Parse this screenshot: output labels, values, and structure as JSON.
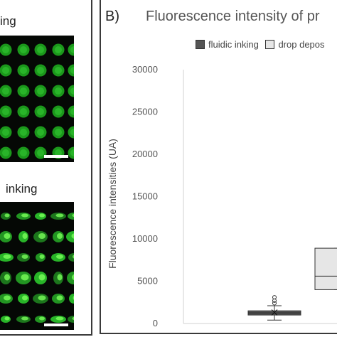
{
  "panel_a": {
    "top_label": "ing",
    "bottom_label": "inking"
  },
  "panel_b": {
    "label": "B)"
  },
  "chart_data": {
    "type": "box",
    "title": "Fluorescence intensity of pr",
    "ylabel": "Fluorescence intensities (UA)",
    "ylim": [
      0,
      30000
    ],
    "yticks": [
      0,
      5000,
      10000,
      15000,
      20000,
      25000,
      30000
    ],
    "grid": false,
    "legend_position": "top",
    "series": [
      {
        "name": "fluidic inking",
        "color": "#555555",
        "min": 400,
        "q1": 1000,
        "median": 1250,
        "mean": 1300,
        "q3": 1500,
        "max": 2100,
        "outliers": [
          2400,
          2700,
          3100
        ]
      },
      {
        "name": "drop depos",
        "color": "#e6e6e6",
        "min": 4000,
        "q1": 4000,
        "median": 5600,
        "q3": 8900,
        "max": 8900,
        "outliers": []
      }
    ]
  }
}
